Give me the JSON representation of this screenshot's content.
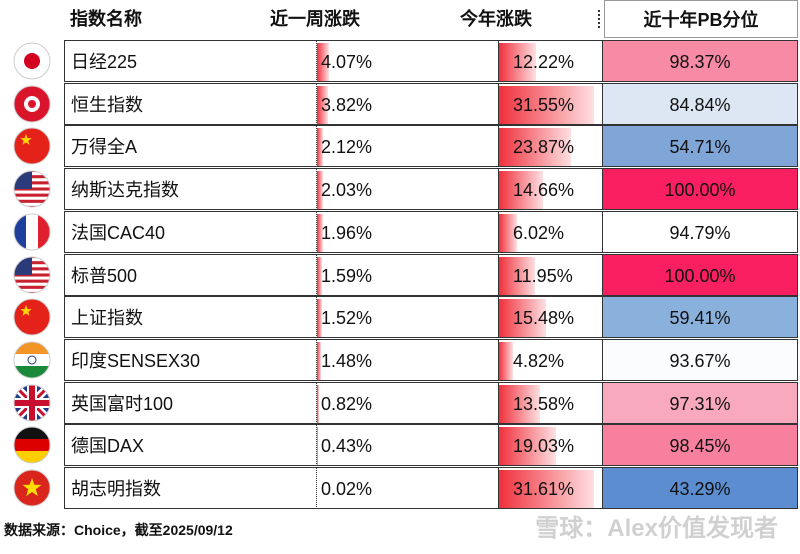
{
  "table": {
    "headers": [
      "指数名称",
      "近一周涨跌",
      "今年涨跌",
      "近十年PB分位"
    ],
    "rows": [
      [
        "日经225",
        "4.07%",
        "12.22%",
        "98.37%"
      ],
      [
        "恒生指数",
        "3.82%",
        "31.55%",
        "84.84%"
      ],
      [
        "万得全A",
        "2.12%",
        "23.87%",
        "54.71%"
      ],
      [
        "纳斯达克指数",
        "2.03%",
        "14.66%",
        "100.00%"
      ],
      [
        "法国CAC40",
        "1.96%",
        "6.02%",
        "94.79%"
      ],
      [
        "标普500",
        "1.59%",
        "11.95%",
        "100.00%"
      ],
      [
        "上证指数",
        "1.52%",
        "15.48%",
        "59.41%"
      ],
      [
        "印度SENSEX30",
        "1.48%",
        "4.82%",
        "93.67%"
      ],
      [
        "英国富时100",
        "0.82%",
        "13.58%",
        "97.31%"
      ],
      [
        "德国DAX",
        "0.43%",
        "19.03%",
        "98.45%"
      ],
      [
        "胡志明指数",
        "0.02%",
        "31.61%",
        "43.29%"
      ]
    ],
    "pb_colors": [
      "#f78aa5",
      "#dde6f3",
      "#7fa6d6",
      "#fa1f60",
      "#ffffff",
      "#fa1f60",
      "#8ab0dc",
      "#fbfcfe",
      "#f9a9bd",
      "#f7809e",
      "#5b8dd0"
    ]
  },
  "footer": {
    "source": "数据来源：Choice，截至2025/09/12",
    "watermark": "雪球：Alex价值发现者"
  }
}
